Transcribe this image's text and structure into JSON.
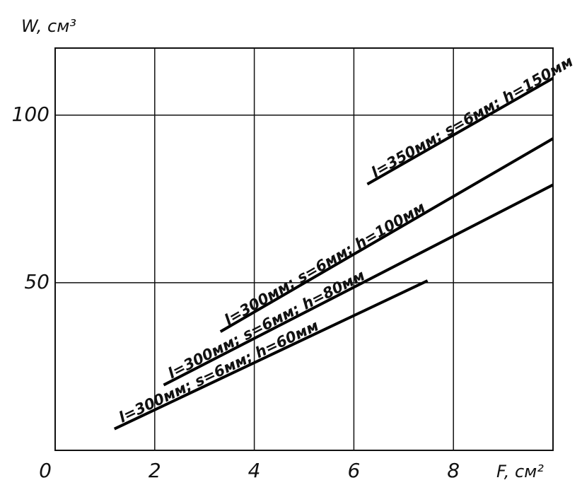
{
  "chart_data": {
    "type": "line",
    "x_label": "F, см²",
    "y_label": "W, см³",
    "xlim": [
      0,
      10
    ],
    "ylim": [
      0,
      120
    ],
    "xticks": [
      0,
      2,
      4,
      6,
      8
    ],
    "yticks": [
      50,
      100
    ],
    "grid": true,
    "series": [
      {
        "name": "l=350мм; s=6мм; h=150мм",
        "color": "#000000",
        "x": [
          6.27,
          10
        ],
        "values": [
          79.4,
          111
        ]
      },
      {
        "name": "l=300мм; s=6мм; h=100мм",
        "color": "#000000",
        "x": [
          3.32,
          10
        ],
        "values": [
          35.4,
          93
        ]
      },
      {
        "name": "l=300мм; s=6мм; h=80мм",
        "color": "#000000",
        "x": [
          2.18,
          10
        ],
        "values": [
          19.5,
          79.2
        ]
      },
      {
        "name": "l=300мм; s=6мм; h=60мм",
        "color": "#000000",
        "x": [
          1.19,
          7.48
        ],
        "values": [
          6.4,
          50.6
        ]
      }
    ]
  }
}
